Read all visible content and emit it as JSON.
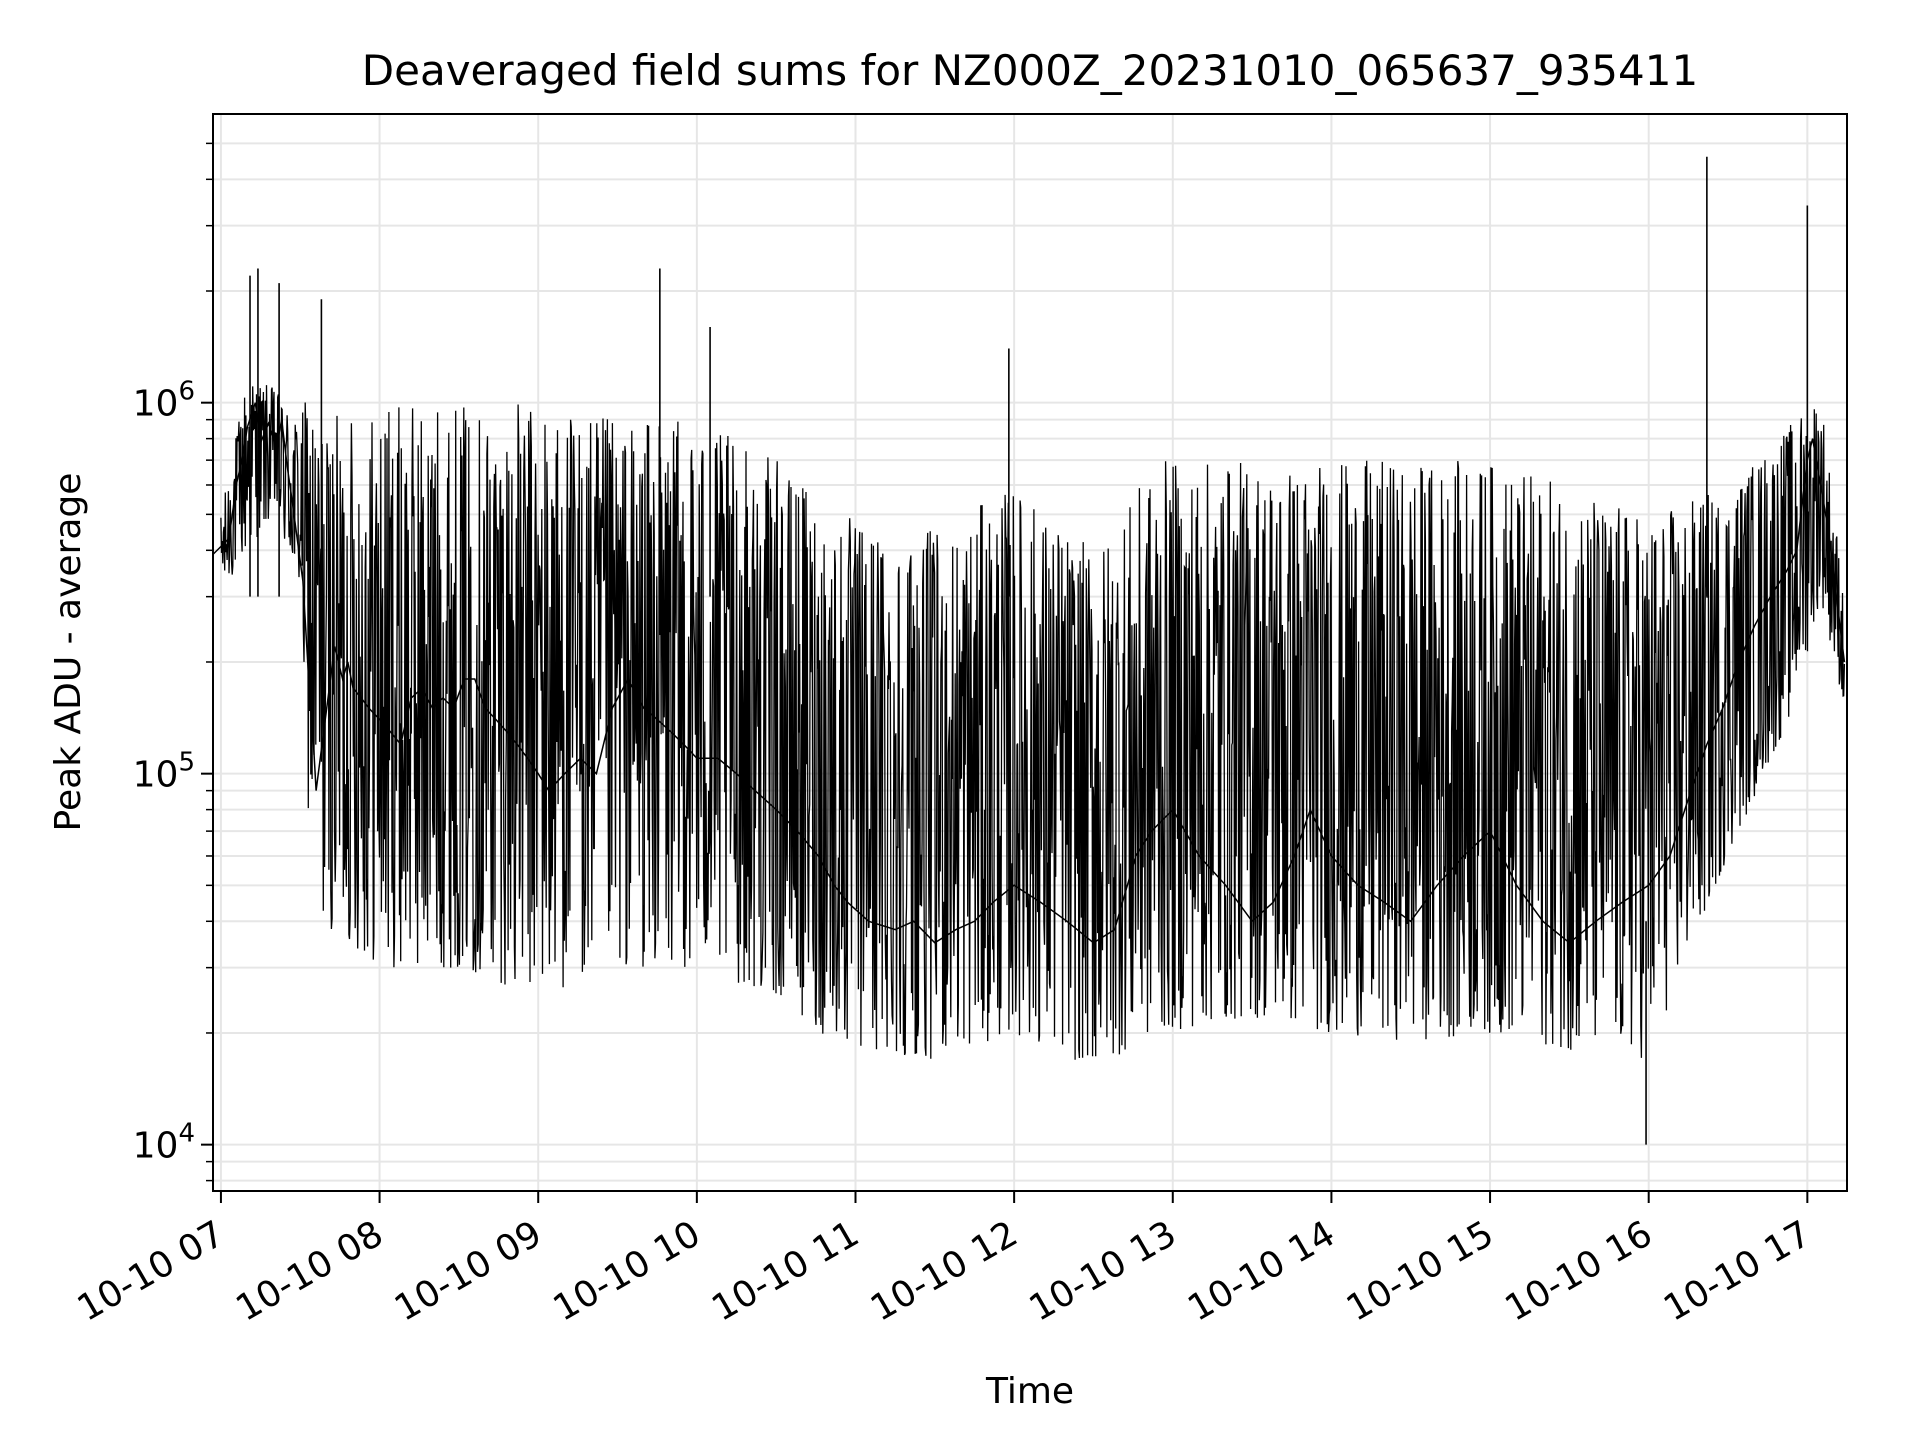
{
  "chart_data": {
    "type": "line",
    "title": "Deaveraged field sums for NZ000Z_20231010_065637_935411",
    "xlabel": "Time",
    "ylabel": "Peak ADU - average",
    "y_scale": "log",
    "xlim": [
      "2023-10-10T06:57:00",
      "2023-10-10T17:15:00"
    ],
    "ylim": [
      7500,
      6000000
    ],
    "x_ticks": [
      {
        "value": "2023-10-10T07:00:00",
        "label": "10-10 07"
      },
      {
        "value": "2023-10-10T08:00:00",
        "label": "10-10 08"
      },
      {
        "value": "2023-10-10T09:00:00",
        "label": "10-10 09"
      },
      {
        "value": "2023-10-10T10:00:00",
        "label": "10-10 10"
      },
      {
        "value": "2023-10-10T11:00:00",
        "label": "10-10 11"
      },
      {
        "value": "2023-10-10T12:00:00",
        "label": "10-10 12"
      },
      {
        "value": "2023-10-10T13:00:00",
        "label": "10-10 13"
      },
      {
        "value": "2023-10-10T14:00:00",
        "label": "10-10 14"
      },
      {
        "value": "2023-10-10T15:00:00",
        "label": "10-10 15"
      },
      {
        "value": "2023-10-10T16:00:00",
        "label": "10-10 16"
      },
      {
        "value": "2023-10-10T17:00:00",
        "label": "10-10 17"
      }
    ],
    "y_ticks": [
      {
        "value": 10000,
        "base": "10",
        "exp": "4"
      },
      {
        "value": 100000,
        "base": "10",
        "exp": "5"
      },
      {
        "value": 1000000,
        "base": "10",
        "exp": "6"
      }
    ],
    "grid": true,
    "line_color": "#000000",
    "grid_color": "#e6e6e6",
    "series": [
      {
        "x": [
          "2023-10-10T06:57:00",
          "2023-10-10T07:03:00",
          "2023-10-10T07:06:00",
          "2023-10-10T07:08:00",
          "2023-10-10T07:10:00",
          "2023-10-10T07:13:00",
          "2023-10-10T07:15:00",
          "2023-10-10T07:18:00",
          "2023-10-10T07:21:00",
          "2023-10-10T07:23:00",
          "2023-10-10T07:25:00",
          "2023-10-10T07:27:00",
          "2023-10-10T07:31:00",
          "2023-10-10T07:33:00",
          "2023-10-10T07:35:00",
          "2023-10-10T07:36:00",
          "2023-10-10T07:40:00",
          "2023-10-10T07:43:00",
          "2023-10-10T07:46:00",
          "2023-10-10T07:48:00",
          "2023-10-10T07:50:00",
          "2023-10-10T07:53:00",
          "2023-10-10T07:56:00",
          "2023-10-10T08:00:00",
          "2023-10-10T08:04:00",
          "2023-10-10T08:08:00",
          "2023-10-10T08:12:00",
          "2023-10-10T08:16:00",
          "2023-10-10T08:20:00",
          "2023-10-10T08:24:00",
          "2023-10-10T08:28:00",
          "2023-10-10T08:32:00",
          "2023-10-10T08:36:00",
          "2023-10-10T08:40:00",
          "2023-10-10T08:44:00",
          "2023-10-10T08:48:00",
          "2023-10-10T08:52:00",
          "2023-10-10T08:56:00",
          "2023-10-10T09:00:00",
          "2023-10-10T09:04:00",
          "2023-10-10T09:10:00",
          "2023-10-10T09:16:00",
          "2023-10-10T09:22:00",
          "2023-10-10T09:28:00",
          "2023-10-10T09:34:00",
          "2023-10-10T09:40:00",
          "2023-10-10T09:45:00",
          "2023-10-10T09:50:00",
          "2023-10-10T09:55:00",
          "2023-10-10T10:00:00",
          "2023-10-10T10:08:00",
          "2023-10-10T10:15:00",
          "2023-10-10T10:22:00",
          "2023-10-10T10:30:00",
          "2023-10-10T10:38:00",
          "2023-10-10T10:46:00",
          "2023-10-10T10:52:00",
          "2023-10-10T10:57:00",
          "2023-10-10T11:05:00",
          "2023-10-10T11:15:00",
          "2023-10-10T11:22:00",
          "2023-10-10T11:30:00",
          "2023-10-10T11:38:00",
          "2023-10-10T11:45:00",
          "2023-10-10T11:52:00",
          "2023-10-10T12:00:00",
          "2023-10-10T12:10:00",
          "2023-10-10T12:20:00",
          "2023-10-10T12:30:00",
          "2023-10-10T12:38:00",
          "2023-10-10T12:46:00",
          "2023-10-10T12:52:00",
          "2023-10-10T13:00:00",
          "2023-10-10T13:10:00",
          "2023-10-10T13:20:00",
          "2023-10-10T13:30:00",
          "2023-10-10T13:38:00",
          "2023-10-10T13:46:00",
          "2023-10-10T13:52:00",
          "2023-10-10T14:00:00",
          "2023-10-10T14:10:00",
          "2023-10-10T14:20:00",
          "2023-10-10T14:30:00",
          "2023-10-10T14:40:00",
          "2023-10-10T14:50:00",
          "2023-10-10T15:00:00",
          "2023-10-10T15:10:00",
          "2023-10-10T15:20:00",
          "2023-10-10T15:30:00",
          "2023-10-10T15:40:00",
          "2023-10-10T15:50:00",
          "2023-10-10T16:00:00",
          "2023-10-10T16:08:00",
          "2023-10-10T16:16:00",
          "2023-10-10T16:22:00",
          "2023-10-10T16:28:00",
          "2023-10-10T16:34:00",
          "2023-10-10T16:40:00",
          "2023-10-10T16:46:00",
          "2023-10-10T16:52:00",
          "2023-10-10T16:56:00",
          "2023-10-10T17:00:00",
          "2023-10-10T17:02:00",
          "2023-10-10T17:05:00",
          "2023-10-10T17:08:00",
          "2023-10-10T17:11:00",
          "2023-10-10T17:14:00"
        ],
        "y": [
          390000,
          430000,
          610000,
          700000,
          860000,
          1000000,
          780000,
          880000,
          760000,
          900000,
          680000,
          540000,
          330000,
          190000,
          120000,
          90000,
          150000,
          220000,
          180000,
          200000,
          170000,
          160000,
          150000,
          140000,
          130000,
          120000,
          160000,
          170000,
          150000,
          160000,
          150000,
          180000,
          180000,
          150000,
          140000,
          130000,
          120000,
          110000,
          100000,
          90000,
          100000,
          110000,
          100000,
          150000,
          180000,
          150000,
          140000,
          130000,
          120000,
          110000,
          110000,
          100000,
          90000,
          80000,
          70000,
          60000,
          50000,
          45000,
          40000,
          38000,
          40000,
          35000,
          38000,
          40000,
          45000,
          50000,
          45000,
          40000,
          35000,
          38000,
          60000,
          70000,
          80000,
          60000,
          50000,
          40000,
          45000,
          60000,
          80000,
          60000,
          50000,
          45000,
          40000,
          50000,
          60000,
          70000,
          50000,
          40000,
          35000,
          40000,
          45000,
          50000,
          60000,
          90000,
          120000,
          150000,
          200000,
          250000,
          300000,
          350000,
          400000,
          700000,
          800000,
          600000,
          450000,
          300000,
          200000
        ]
      }
    ],
    "series_envelope": {
      "x": [
        "2023-10-10T07:00:00",
        "2023-10-10T07:10:00",
        "2023-10-10T07:20:00",
        "2023-10-10T07:30:00",
        "2023-10-10T07:33:00",
        "2023-10-10T07:38:00",
        "2023-10-10T08:00:00",
        "2023-10-10T08:30:00",
        "2023-10-10T09:00:00",
        "2023-10-10T09:30:00",
        "2023-10-10T10:00:00",
        "2023-10-10T10:30:00",
        "2023-10-10T10:55:00",
        "2023-10-10T11:30:00",
        "2023-10-10T12:00:00",
        "2023-10-10T12:30:00",
        "2023-10-10T12:55:00",
        "2023-10-10T13:30:00",
        "2023-10-10T14:00:00",
        "2023-10-10T14:30:00",
        "2023-10-10T15:00:00",
        "2023-10-10T15:30:00",
        "2023-10-10T16:00:00",
        "2023-10-10T16:30:00",
        "2023-10-10T16:55:00",
        "2023-10-10T17:05:00",
        "2023-10-10T17:14:00"
      ],
      "low": [
        300000,
        400000,
        500000,
        300000,
        80000,
        40000,
        30000,
        30000,
        25000,
        30000,
        30000,
        25000,
        18000,
        17000,
        20000,
        16000,
        20000,
        22000,
        20000,
        19000,
        20000,
        18000,
        17000,
        60000,
        150000,
        300000,
        150000
      ],
      "high": [
        500000,
        1200000,
        1100000,
        900000,
        1100000,
        900000,
        1000000,
        1000000,
        1000000,
        900000,
        900000,
        700000,
        500000,
        450000,
        600000,
        400000,
        700000,
        700000,
        700000,
        700000,
        700000,
        600000,
        500000,
        600000,
        900000,
        1100000,
        300000
      ]
    },
    "spikes": [
      {
        "x": "2023-10-10T07:11:00",
        "y": 2200000
      },
      {
        "x": "2023-10-10T07:14:00",
        "y": 2300000
      },
      {
        "x": "2023-10-10T07:22:00",
        "y": 2100000
      },
      {
        "x": "2023-10-10T07:38:00",
        "y": 1900000
      },
      {
        "x": "2023-10-10T09:46:00",
        "y": 2300000
      },
      {
        "x": "2023-10-10T10:05:00",
        "y": 1600000
      },
      {
        "x": "2023-10-10T11:58:00",
        "y": 1400000
      },
      {
        "x": "2023-10-10T15:59:00",
        "y": 10000
      },
      {
        "x": "2023-10-10T16:22:00",
        "y": 4600000
      },
      {
        "x": "2023-10-10T17:00:00",
        "y": 3400000
      }
    ]
  }
}
